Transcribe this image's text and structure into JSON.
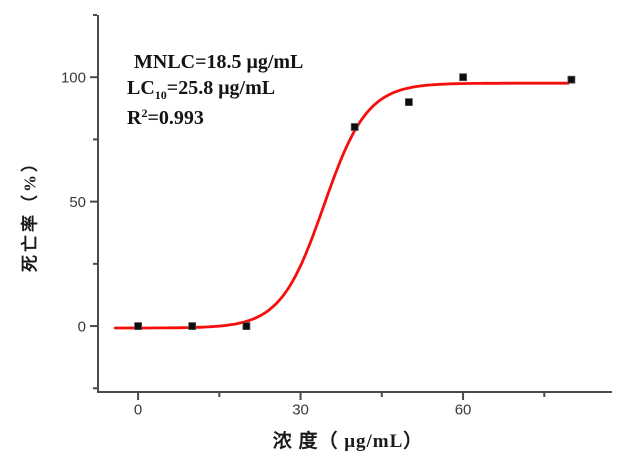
{
  "chart_data": {
    "type": "scatter",
    "title": "",
    "xlabel": "浓 度（ μg/mL）",
    "ylabel": "死亡率（%）",
    "series": [
      {
        "name": "mortality-observed",
        "marker": "square",
        "x": [
          0,
          10,
          20,
          40,
          50,
          60,
          80
        ],
        "y": [
          0,
          0,
          0,
          80,
          90,
          100,
          99
        ]
      }
    ],
    "fit_curve": {
      "name": "logistic-fit",
      "model": "boltzmann-sigmoid",
      "bottom": -0.8,
      "top": 97.6,
      "x0": 34.3,
      "k": 4.0,
      "x_start": -4.2,
      "x_end": 79.8
    },
    "xlim": [
      -7.4,
      87.5
    ],
    "ylim": [
      -26.5,
      125
    ],
    "x_major_ticks": [
      0,
      30,
      60
    ],
    "x_minor_ticks": [
      15,
      45,
      75
    ],
    "y_major_ticks": [
      0,
      50,
      100
    ],
    "y_minor_ticks": [
      -25,
      25,
      75,
      125
    ],
    "grid": false,
    "legend": "none",
    "annotations": [
      "MNLC=18.5 μg/mL",
      "LC10=25.8 μg/mL",
      "R2=0.993"
    ],
    "colors": {
      "curve": "#f80d0d",
      "marker": "#0d0d0d",
      "axis": "#4a4a4a",
      "tick_label": "#3a3a3a",
      "background": "#ffffff"
    }
  },
  "annotation_rich": {
    "line1": "MNLC=18.5 μg/mL",
    "line2_pre": "LC",
    "line2_sub": "10",
    "line2_post": "=25.8 μg/mL",
    "line3_pre": "R",
    "line3_sup": "2",
    "line3_post": "=0.993"
  }
}
